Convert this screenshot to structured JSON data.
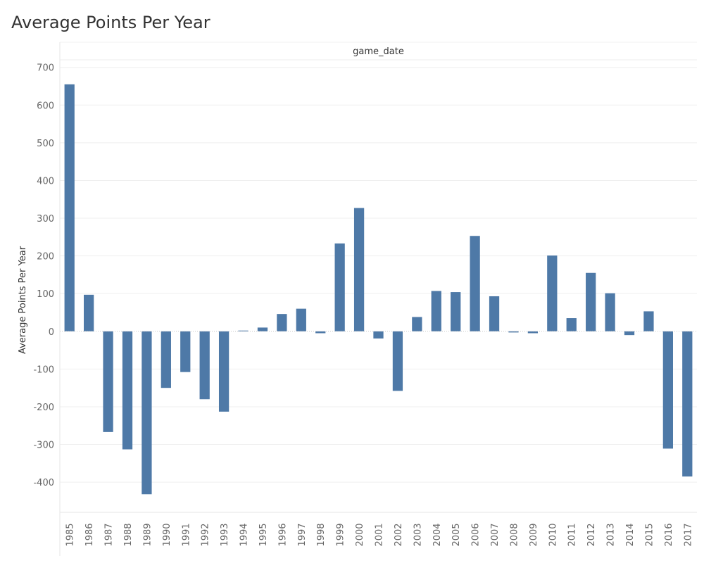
{
  "page_title": "Average Points Per Year",
  "chart_data": {
    "type": "bar",
    "title": "Average Points Per Year",
    "column_header": "game_date",
    "xlabel": "",
    "ylabel": "Average Points Per Year",
    "ylim": [
      -480,
      720
    ],
    "yticks": [
      700,
      600,
      500,
      400,
      300,
      200,
      100,
      0,
      -100,
      -200,
      -300,
      -400
    ],
    "categories": [
      "1985",
      "1986",
      "1987",
      "1988",
      "1989",
      "1990",
      "1991",
      "1992",
      "1993",
      "1994",
      "1995",
      "1996",
      "1997",
      "1998",
      "1999",
      "2000",
      "2001",
      "2002",
      "2003",
      "2004",
      "2005",
      "2006",
      "2007",
      "2008",
      "2009",
      "2010",
      "2011",
      "2012",
      "2013",
      "2014",
      "2015",
      "2016",
      "2017"
    ],
    "values": [
      655,
      97,
      -267,
      -313,
      -432,
      -150,
      -108,
      -180,
      -213,
      2,
      10,
      46,
      60,
      -5,
      233,
      327,
      -19,
      -158,
      38,
      107,
      104,
      253,
      93,
      -3,
      -5,
      201,
      35,
      155,
      101,
      -10,
      53,
      -311,
      -385
    ],
    "bar_color": "#4e79a7",
    "grid": true,
    "legend": "none"
  }
}
